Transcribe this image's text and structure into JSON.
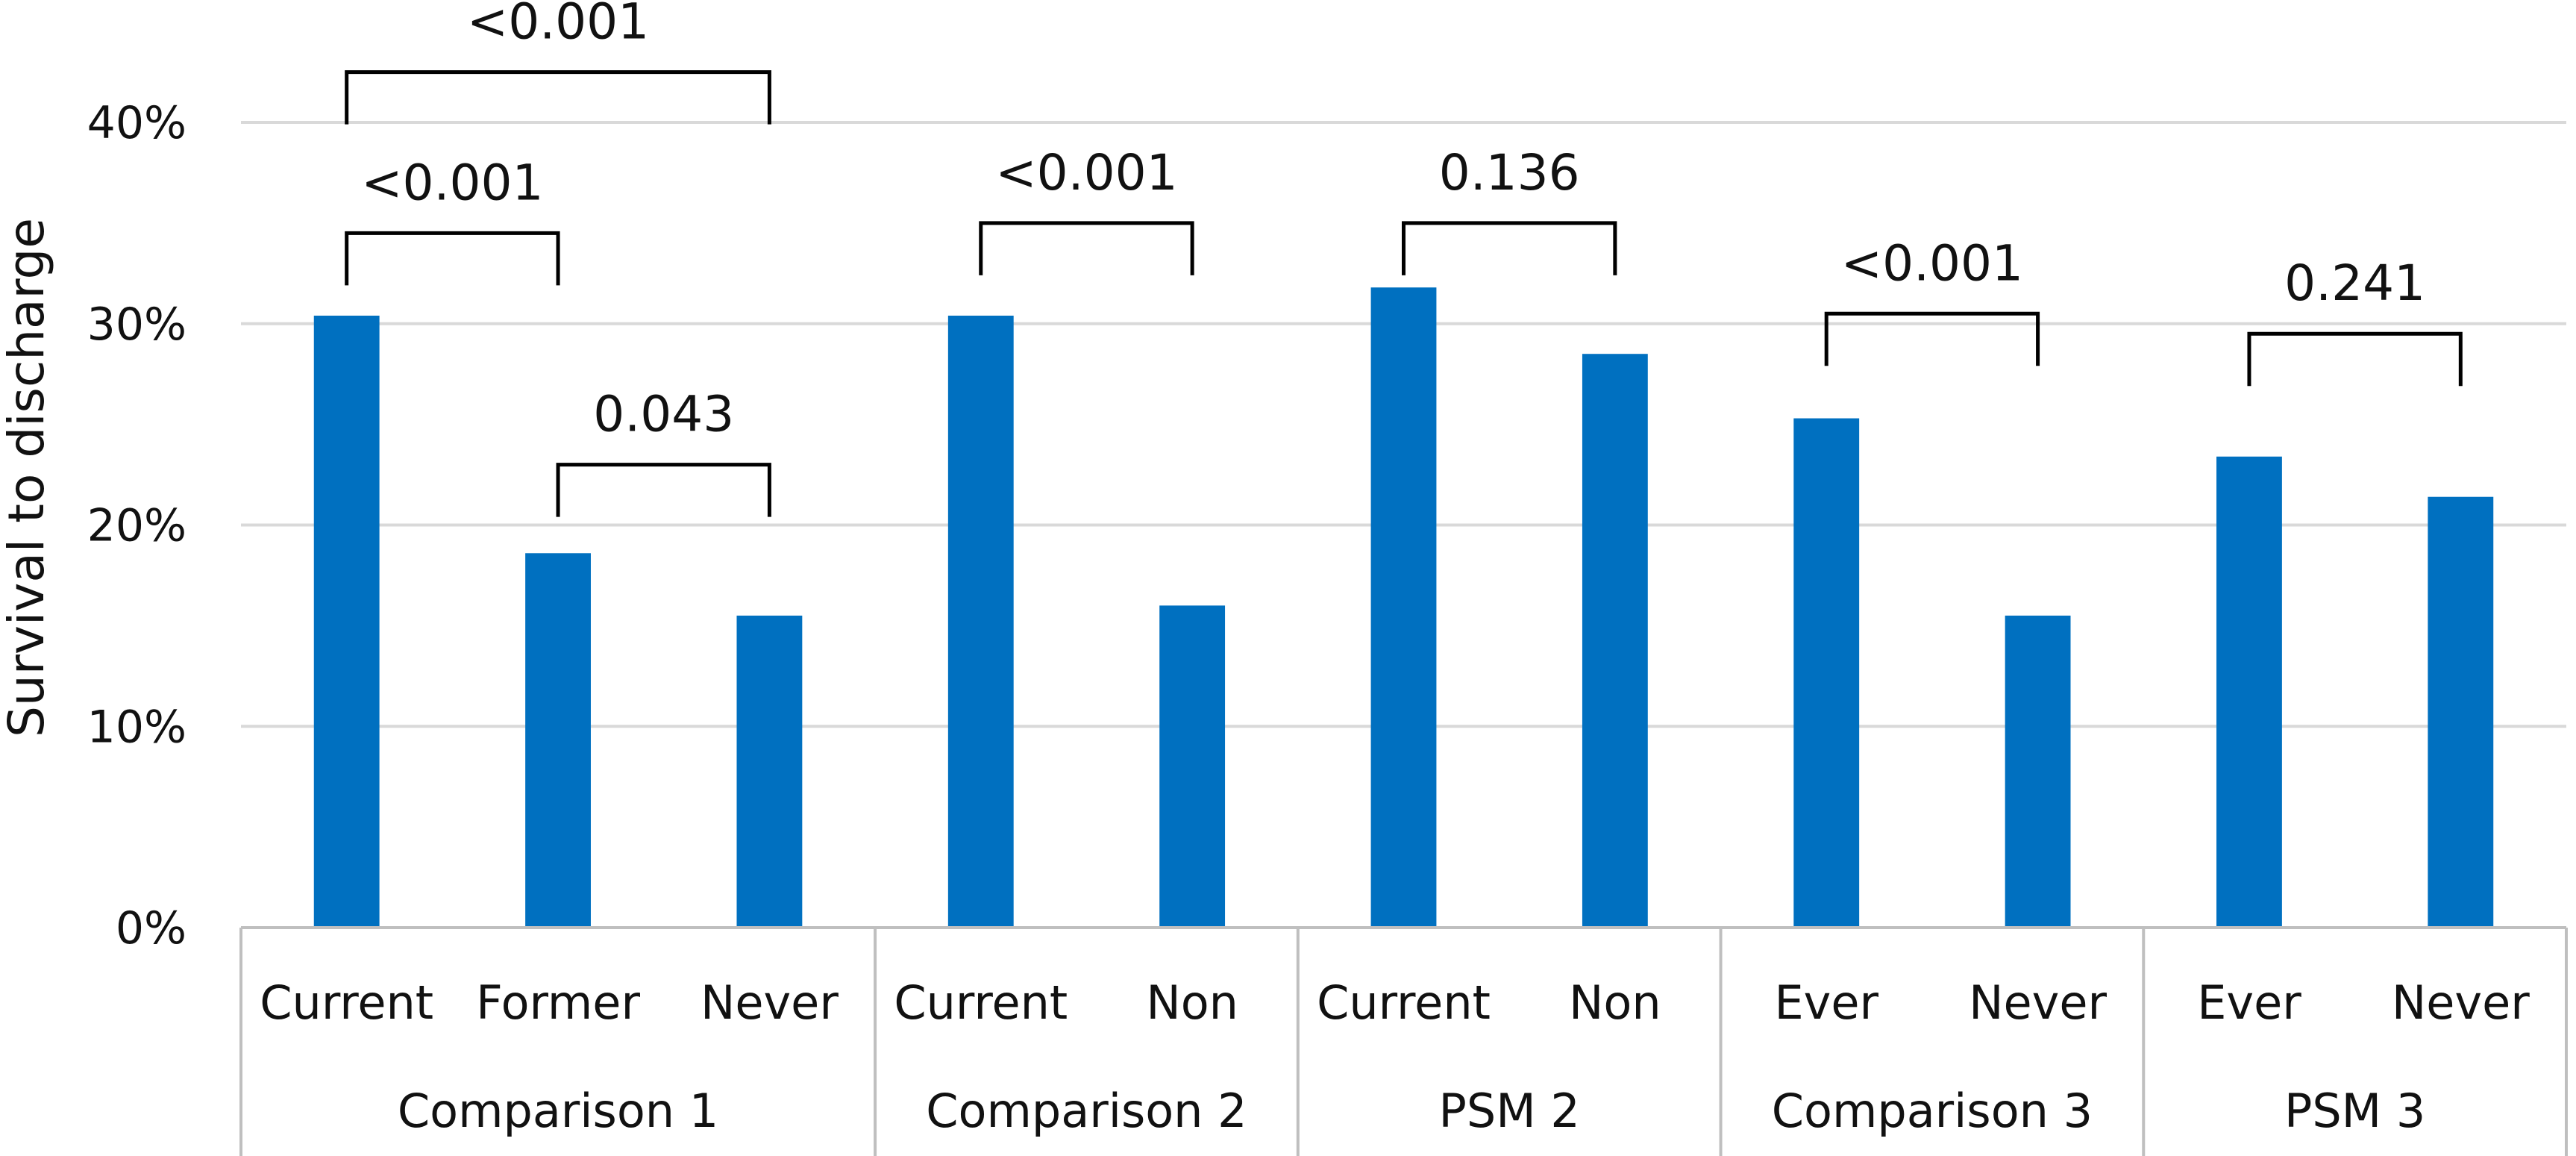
{
  "chart_data": {
    "type": "bar",
    "ylabel": "Survival to discharge",
    "ylim": [
      0,
      40
    ],
    "yticks": [
      "0%",
      "10%",
      "20%",
      "30%",
      "40%"
    ],
    "grid": true,
    "bar_color": "#0070c0",
    "groups": [
      {
        "name": "Comparison 1",
        "categories": [
          "Current",
          "Former",
          "Never"
        ],
        "values": [
          30.4,
          18.6,
          15.5
        ]
      },
      {
        "name": "Comparison 2",
        "categories": [
          "Current",
          "Non"
        ],
        "values": [
          30.4,
          16.0
        ]
      },
      {
        "name": "PSM 2",
        "categories": [
          "Current",
          "Non"
        ],
        "values": [
          31.8,
          28.5
        ]
      },
      {
        "name": "Comparison 3",
        "categories": [
          "Ever",
          "Never"
        ],
        "values": [
          25.3,
          15.5
        ]
      },
      {
        "name": "PSM 3",
        "categories": [
          "Ever",
          "Never"
        ],
        "values": [
          23.4,
          21.4
        ]
      }
    ],
    "annotations": [
      {
        "text": "<0.001",
        "group": 0,
        "from": 0,
        "to": 2,
        "level": 42.5
      },
      {
        "text": "<0.001",
        "group": 0,
        "from": 0,
        "to": 1,
        "level": 34.5
      },
      {
        "text": "0.043",
        "group": 0,
        "from": 1,
        "to": 2,
        "level": 23.0
      },
      {
        "text": "<0.001",
        "group": 1,
        "from": 0,
        "to": 1,
        "level": 35.0
      },
      {
        "text": "0.136",
        "group": 2,
        "from": 0,
        "to": 1,
        "level": 35.0
      },
      {
        "text": "<0.001",
        "group": 3,
        "from": 0,
        "to": 1,
        "level": 30.5
      },
      {
        "text": "0.241",
        "group": 4,
        "from": 0,
        "to": 1,
        "level": 29.5
      }
    ]
  }
}
